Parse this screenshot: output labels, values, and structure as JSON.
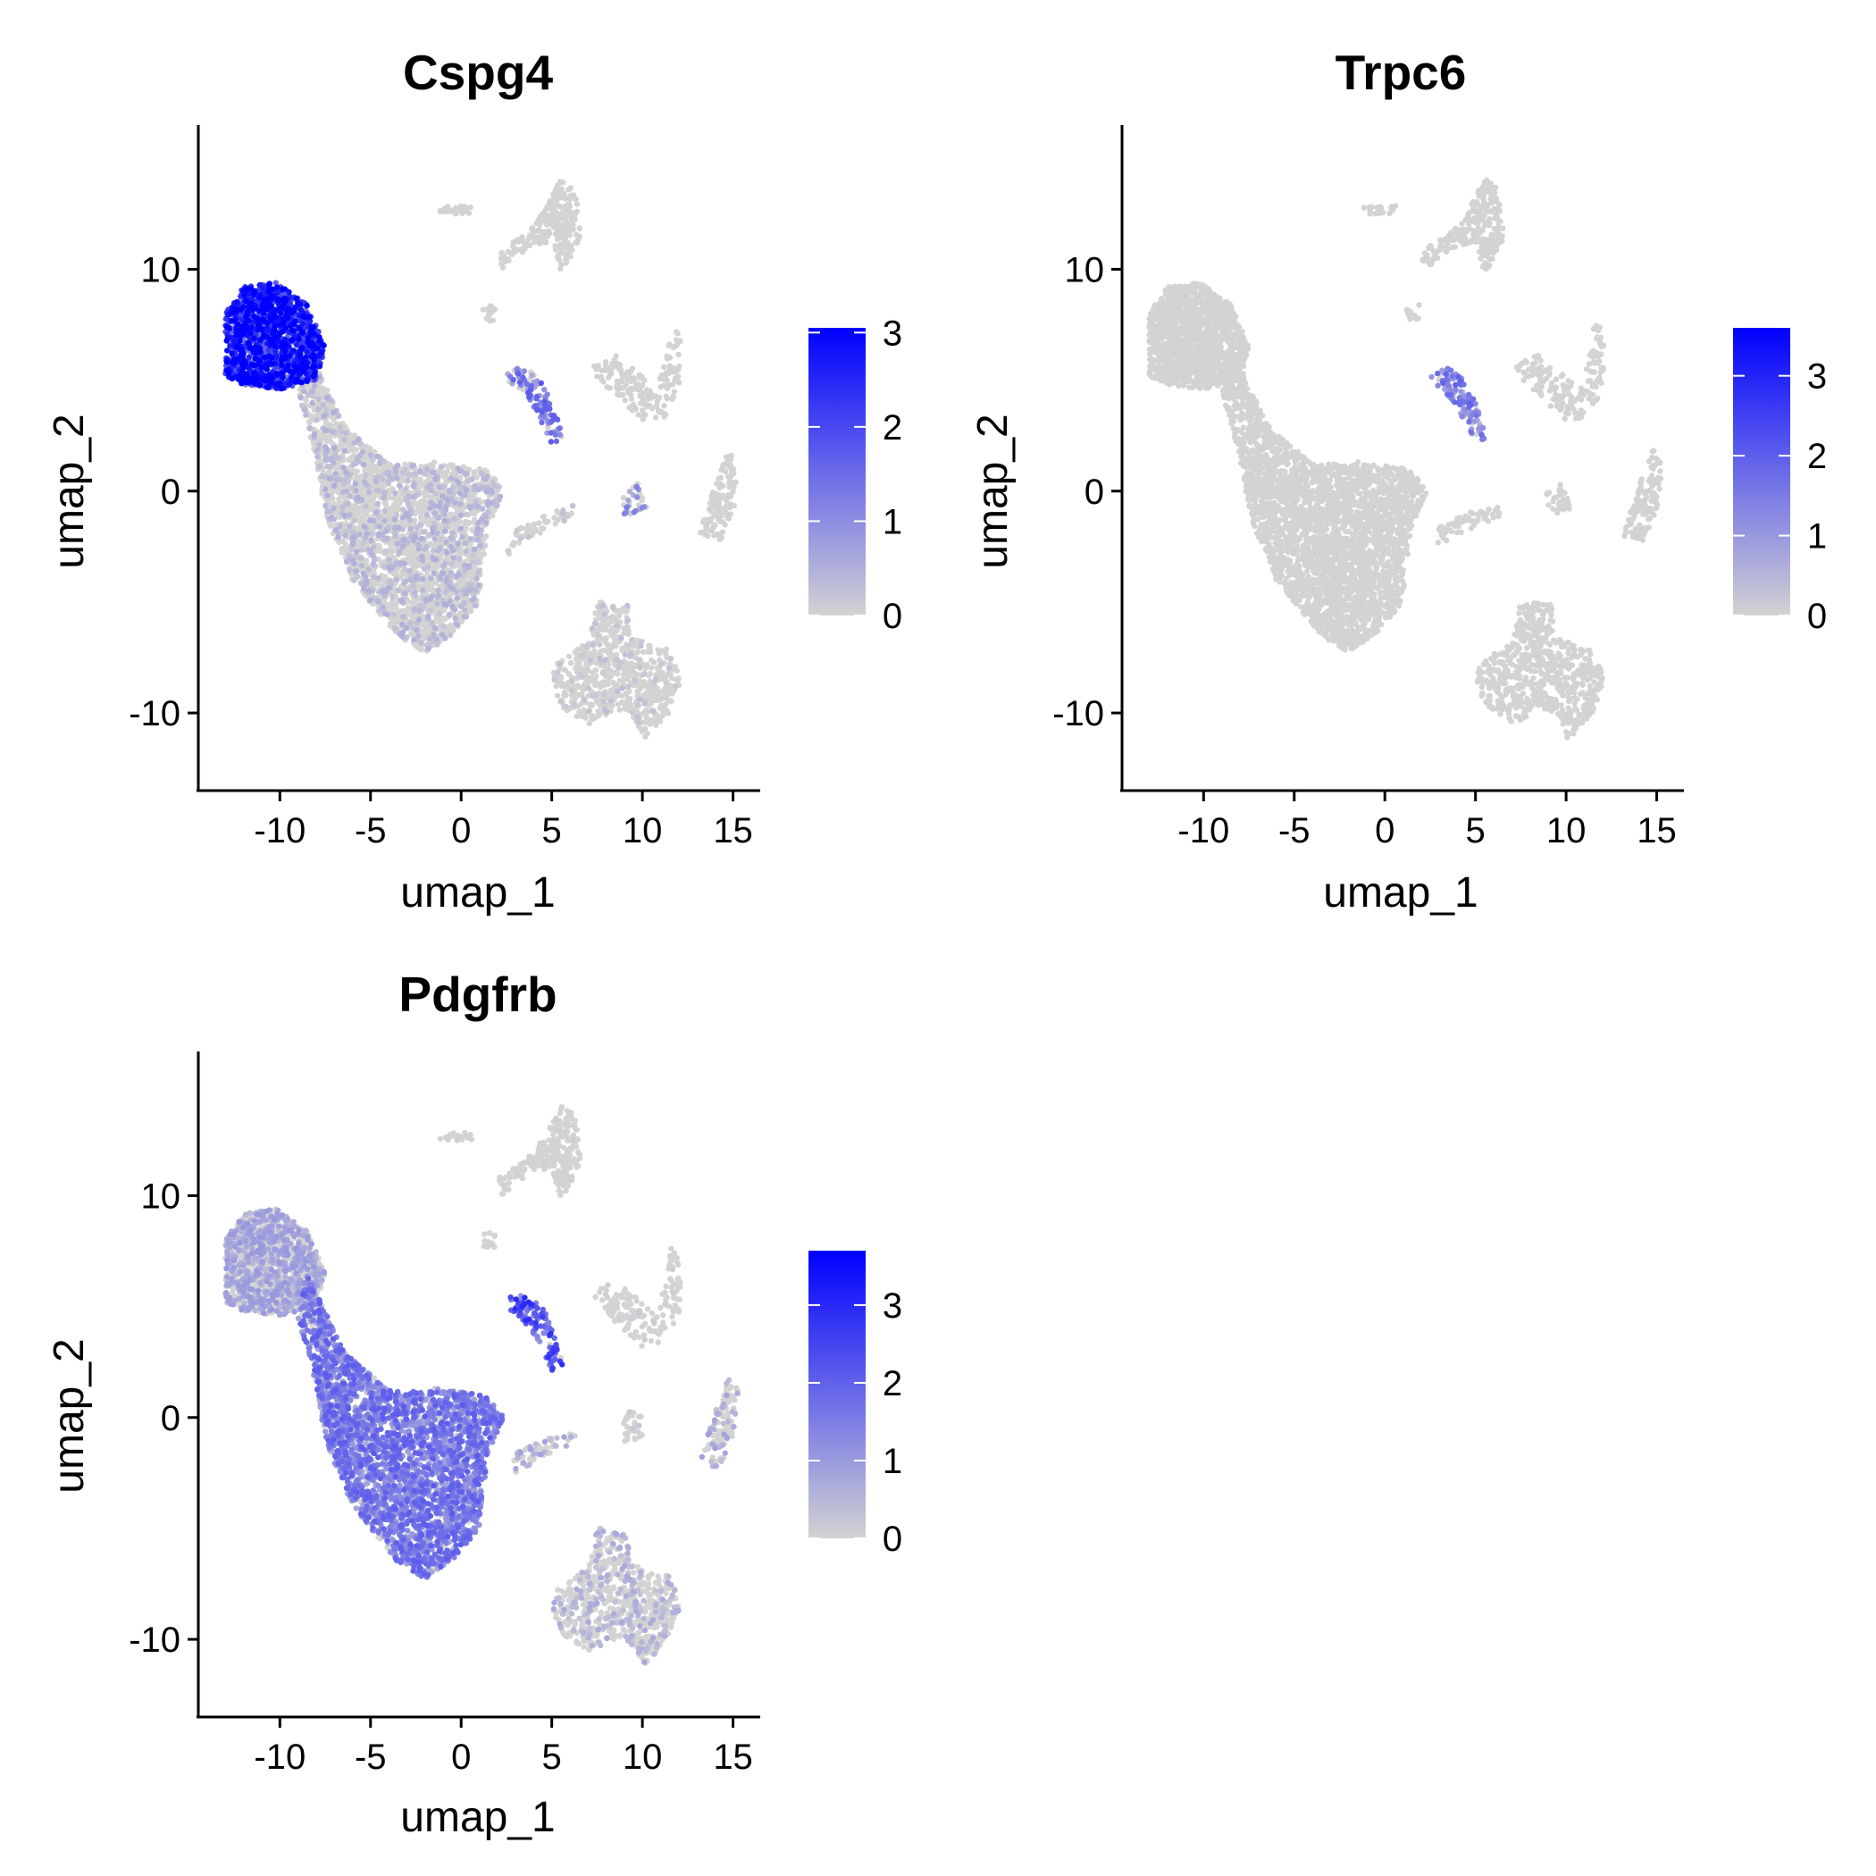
{
  "chart_data": [
    {
      "type": "scatter",
      "title": "Cspg4",
      "xlabel": "umap_1",
      "ylabel": "umap_2",
      "xlim": [
        -14.5,
        16.5
      ],
      "ylim": [
        -13.5,
        16.5
      ],
      "xticks": [
        -10,
        -5,
        0,
        5,
        10,
        15
      ],
      "yticks": [
        -10,
        0,
        10
      ],
      "xtick_labels": [
        "-10",
        "-5",
        "0",
        "5",
        "10",
        "15"
      ],
      "ytick_labels": [
        "-10",
        "0",
        "10"
      ],
      "grid": false,
      "legend": {
        "type": "colorbar",
        "min": 0,
        "max": 3.05,
        "ticks": [
          0,
          1,
          2,
          3
        ],
        "tick_labels": [
          "0",
          "1",
          "2",
          "3"
        ],
        "low_color": "#d3d3d3",
        "high_color": "#0000ff"
      },
      "expression": {
        "main_top": 2.3,
        "main_bottom": 0.35,
        "bridge": 1.2,
        "bridge_low": 0.2,
        "bottom_cluster": 0.2,
        "small_mid": 0.9,
        "top_cluster": 0,
        "right_cluster": 0,
        "mid_right": 0,
        "connector": 0.2
      }
    },
    {
      "type": "scatter",
      "title": "Trpc6",
      "xlabel": "umap_1",
      "ylabel": "umap_2",
      "xlim": [
        -14.5,
        16.5
      ],
      "ylim": [
        -13.5,
        16.5
      ],
      "xticks": [
        -10,
        -5,
        0,
        5,
        10,
        15
      ],
      "yticks": [
        -10,
        0,
        10
      ],
      "xtick_labels": [
        "-10",
        "-5",
        "0",
        "5",
        "10",
        "15"
      ],
      "ytick_labels": [
        "-10",
        "0",
        "10"
      ],
      "grid": false,
      "legend": {
        "type": "colorbar",
        "min": 0,
        "max": 3.6,
        "ticks": [
          0,
          1,
          2,
          3
        ],
        "tick_labels": [
          "0",
          "1",
          "2",
          "3"
        ],
        "low_color": "#d3d3d3",
        "high_color": "#0000ff"
      },
      "expression": {
        "main_top": 0.02,
        "main_bottom": 0.02,
        "bridge": 1.3,
        "bridge_low": 0.05,
        "bottom_cluster": 0,
        "small_mid": 0,
        "top_cluster": 0,
        "right_cluster": 0,
        "mid_right": 0,
        "connector": 0
      }
    },
    {
      "type": "scatter",
      "title": "Pdgfrb",
      "xlabel": "umap_1",
      "ylabel": "umap_2",
      "xlim": [
        -14.5,
        16.5
      ],
      "ylim": [
        -13.5,
        16.5
      ],
      "xticks": [
        -10,
        -5,
        0,
        5,
        10,
        15
      ],
      "yticks": [
        -10,
        0,
        10
      ],
      "xtick_labels": [
        "-10",
        "-5",
        "0",
        "5",
        "10",
        "15"
      ],
      "ytick_labels": [
        "-10",
        "0",
        "10"
      ],
      "grid": false,
      "legend": {
        "type": "colorbar",
        "min": 0,
        "max": 3.7,
        "ticks": [
          0,
          1,
          2,
          3
        ],
        "tick_labels": [
          "0",
          "1",
          "2",
          "3"
        ],
        "low_color": "#d3d3d3",
        "high_color": "#0000ff"
      },
      "expression": {
        "main_top": 0.7,
        "main_bottom": 1.4,
        "bridge": 2.0,
        "bridge_low": 0.5,
        "bottom_cluster": 0.5,
        "small_mid": 0.2,
        "top_cluster": 0.05,
        "right_cluster": 0.6,
        "mid_right": 0.1,
        "connector": 0.6
      }
    }
  ]
}
